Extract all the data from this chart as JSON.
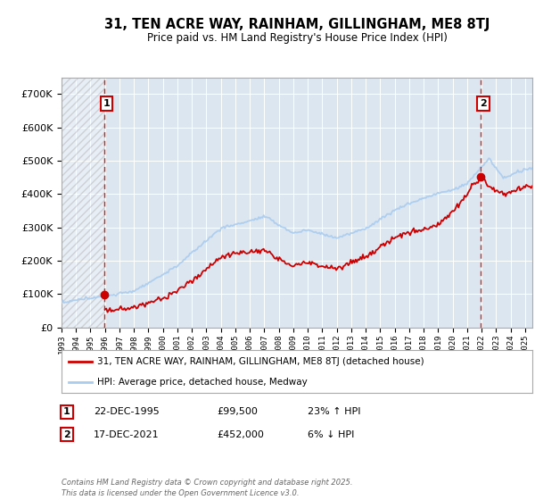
{
  "title": "31, TEN ACRE WAY, RAINHAM, GILLINGHAM, ME8 8TJ",
  "subtitle": "Price paid vs. HM Land Registry's House Price Index (HPI)",
  "legend_line1": "31, TEN ACRE WAY, RAINHAM, GILLINGHAM, ME8 8TJ (detached house)",
  "legend_line2": "HPI: Average price, detached house, Medway",
  "annotation1_label": "1",
  "annotation1_date": "22-DEC-1995",
  "annotation1_price": "£99,500",
  "annotation1_hpi": "23% ↑ HPI",
  "annotation2_label": "2",
  "annotation2_date": "17-DEC-2021",
  "annotation2_price": "£452,000",
  "annotation2_hpi": "6% ↓ HPI",
  "footer": "Contains HM Land Registry data © Crown copyright and database right 2025.\nThis data is licensed under the Open Government Licence v3.0.",
  "price_color": "#cc0000",
  "hpi_color": "#6699cc",
  "hpi_color_light": "#aaccee",
  "background_color": "#dce6f1",
  "plot_bg_color": "#dce6f1",
  "ylim": [
    0,
    750000
  ],
  "yticks": [
    0,
    100000,
    200000,
    300000,
    400000,
    500000,
    600000,
    700000
  ],
  "sale1_year": 1995.97,
  "sale1_price": 99500,
  "sale2_year": 2021.96,
  "sale2_price": 452000,
  "xmin": 1993,
  "xmax": 2025.5,
  "hatch_end": 1995.97
}
